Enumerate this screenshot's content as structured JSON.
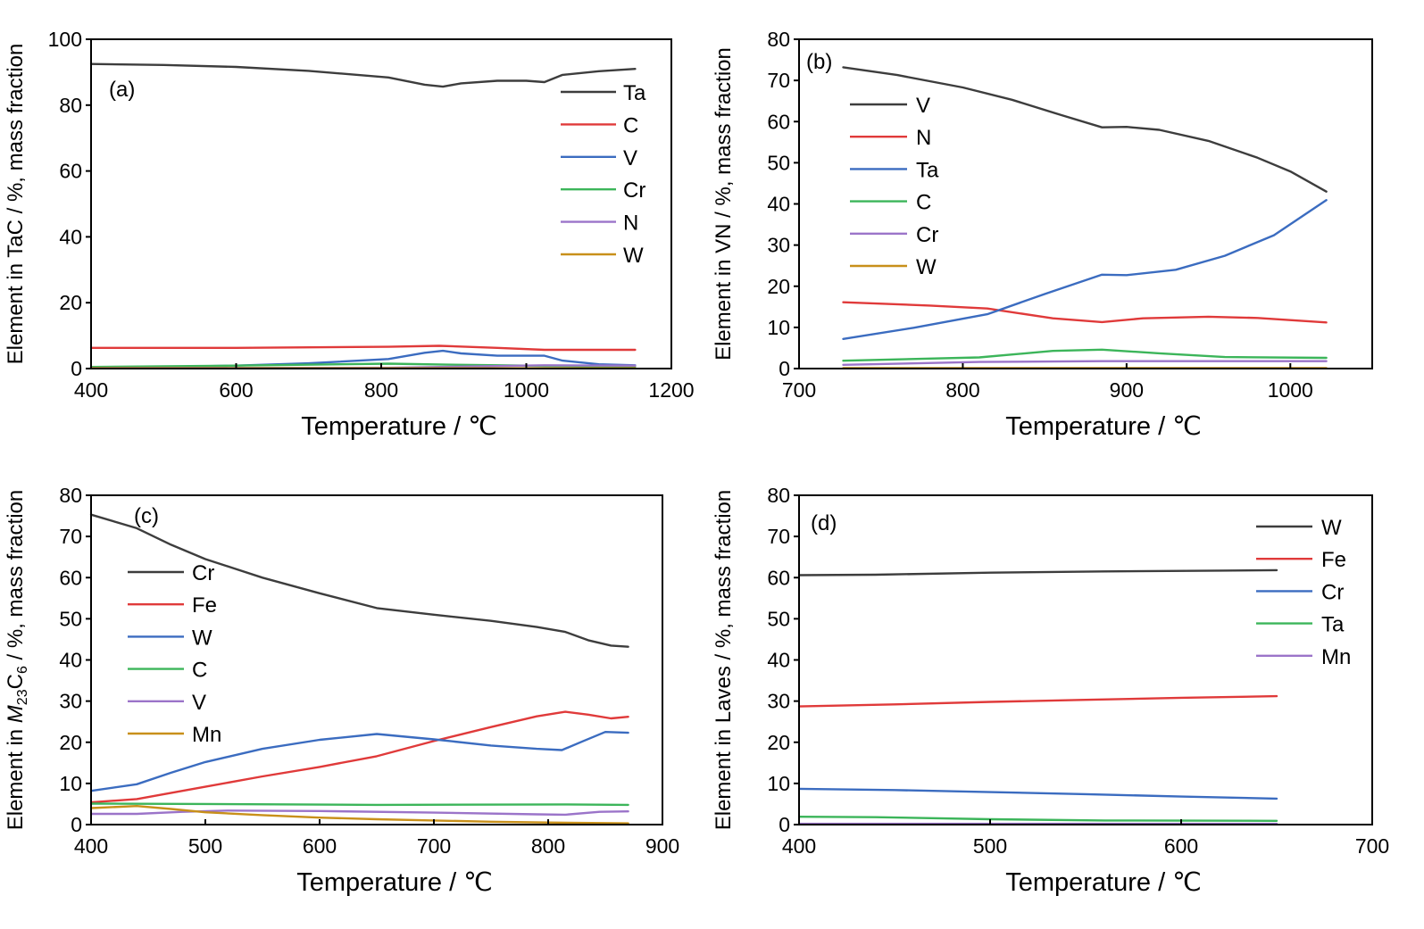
{
  "chart_data": [
    {
      "type": "line",
      "panel_label": "(a)",
      "xlabel": "Temperature / ℃",
      "ylabel": "Element in TaC / %, mass fraction",
      "xlim": [
        400,
        1200
      ],
      "ylim": [
        0,
        100
      ],
      "xticks": [
        400,
        600,
        800,
        1000,
        1200
      ],
      "yticks": [
        0,
        20,
        40,
        60,
        80,
        100
      ],
      "grid": false,
      "legend_position": "top-right",
      "series": [
        {
          "name": "Ta",
          "color": "#3d3d3d",
          "points": [
            [
              400,
              92.5
            ],
            [
              500,
              92.2
            ],
            [
              600,
              91.6
            ],
            [
              700,
              90.4
            ],
            [
              810,
              88.4
            ],
            [
              860,
              86.2
            ],
            [
              885,
              85.6
            ],
            [
              910,
              86.6
            ],
            [
              960,
              87.4
            ],
            [
              1000,
              87.4
            ],
            [
              1025,
              87.0
            ],
            [
              1050,
              89.2
            ],
            [
              1100,
              90.3
            ],
            [
              1150,
              91.0
            ]
          ]
        },
        {
          "name": "C",
          "color": "#e03a3a",
          "points": [
            [
              400,
              6.3
            ],
            [
              600,
              6.3
            ],
            [
              810,
              6.6
            ],
            [
              880,
              6.9
            ],
            [
              960,
              6.3
            ],
            [
              1025,
              5.7
            ],
            [
              1150,
              5.7
            ]
          ]
        },
        {
          "name": "V",
          "color": "#3b6cc0",
          "points": [
            [
              400,
              0.3
            ],
            [
              500,
              0.5
            ],
            [
              600,
              0.9
            ],
            [
              700,
              1.6
            ],
            [
              810,
              2.9
            ],
            [
              860,
              4.8
            ],
            [
              885,
              5.4
            ],
            [
              910,
              4.6
            ],
            [
              960,
              3.9
            ],
            [
              1025,
              3.9
            ],
            [
              1050,
              2.4
            ],
            [
              1100,
              1.3
            ],
            [
              1150,
              1.0
            ]
          ]
        },
        {
          "name": "Cr",
          "color": "#3cb55a",
          "points": [
            [
              400,
              0.5
            ],
            [
              600,
              0.9
            ],
            [
              810,
              1.5
            ],
            [
              890,
              1.2
            ],
            [
              1025,
              0.8
            ],
            [
              1150,
              0.6
            ]
          ]
        },
        {
          "name": "N",
          "color": "#9b74c9",
          "points": [
            [
              400,
              0.15
            ],
            [
              810,
              0.25
            ],
            [
              1025,
              1.0
            ],
            [
              1150,
              0.9
            ]
          ]
        },
        {
          "name": "W",
          "color": "#c8901a",
          "points": [
            [
              400,
              0.1
            ],
            [
              1150,
              0.1
            ]
          ]
        }
      ]
    },
    {
      "type": "line",
      "panel_label": "(b)",
      "xlabel": "Temperature / ℃",
      "ylabel": "Element in VN / %, mass fraction",
      "xlim": [
        700,
        1050
      ],
      "ylim": [
        0,
        80
      ],
      "xticks": [
        700,
        800,
        900,
        1000
      ],
      "yticks": [
        0,
        10,
        20,
        30,
        40,
        50,
        60,
        70,
        80
      ],
      "grid": false,
      "legend_position": "top-left",
      "series": [
        {
          "name": "V",
          "color": "#3d3d3d",
          "points": [
            [
              727,
              73.2
            ],
            [
              760,
              71.3
            ],
            [
              800,
              68.3
            ],
            [
              830,
              65.3
            ],
            [
              860,
              61.6
            ],
            [
              885,
              58.6
            ],
            [
              900,
              58.7
            ],
            [
              920,
              58.0
            ],
            [
              950,
              55.3
            ],
            [
              980,
              51.2
            ],
            [
              1000,
              47.9
            ],
            [
              1022,
              43.0
            ]
          ]
        },
        {
          "name": "N",
          "color": "#e03a3a",
          "points": [
            [
              727,
              16.1
            ],
            [
              780,
              15.3
            ],
            [
              815,
              14.6
            ],
            [
              855,
              12.2
            ],
            [
              885,
              11.3
            ],
            [
              910,
              12.2
            ],
            [
              950,
              12.6
            ],
            [
              980,
              12.3
            ],
            [
              1022,
              11.2
            ]
          ]
        },
        {
          "name": "Ta",
          "color": "#3b6cc0",
          "points": [
            [
              727,
              7.2
            ],
            [
              770,
              9.9
            ],
            [
              815,
              13.2
            ],
            [
              850,
              18.1
            ],
            [
              885,
              22.8
            ],
            [
              900,
              22.7
            ],
            [
              930,
              24.0
            ],
            [
              960,
              27.4
            ],
            [
              990,
              32.4
            ],
            [
              1022,
              40.9
            ]
          ]
        },
        {
          "name": "C",
          "color": "#3cb55a",
          "points": [
            [
              727,
              1.9
            ],
            [
              810,
              2.7
            ],
            [
              855,
              4.3
            ],
            [
              885,
              4.6
            ],
            [
              920,
              3.7
            ],
            [
              960,
              2.8
            ],
            [
              1022,
              2.6
            ]
          ]
        },
        {
          "name": "Cr",
          "color": "#9b74c9",
          "points": [
            [
              727,
              0.9
            ],
            [
              810,
              1.6
            ],
            [
              885,
              1.8
            ],
            [
              1022,
              1.8
            ]
          ]
        },
        {
          "name": "W",
          "color": "#c8901a",
          "points": [
            [
              727,
              0.1
            ],
            [
              1022,
              0.1
            ]
          ]
        }
      ]
    },
    {
      "type": "line",
      "panel_label": "(c)",
      "xlabel": "Temperature / ℃",
      "ylabel_prefix": "Element in ",
      "ylabel_italic": "M",
      "ylabel_sub1": "23",
      "ylabel_mid": "C",
      "ylabel_sub2": "6",
      "ylabel_suffix": " / %, mass fraction",
      "xlim": [
        400,
        900
      ],
      "ylim": [
        0,
        80
      ],
      "xticks": [
        400,
        500,
        600,
        700,
        800,
        900
      ],
      "yticks": [
        0,
        10,
        20,
        30,
        40,
        50,
        60,
        70,
        80
      ],
      "grid": false,
      "legend_position": "middle-left",
      "series": [
        {
          "name": "Cr",
          "color": "#3d3d3d",
          "points": [
            [
              400,
              75.3
            ],
            [
              440,
              72.0
            ],
            [
              470,
              68.0
            ],
            [
              500,
              64.5
            ],
            [
              550,
              60.0
            ],
            [
              600,
              56.2
            ],
            [
              650,
              52.6
            ],
            [
              700,
              51.0
            ],
            [
              750,
              49.5
            ],
            [
              790,
              48.0
            ],
            [
              815,
              46.8
            ],
            [
              835,
              44.8
            ],
            [
              855,
              43.5
            ],
            [
              870,
              43.2
            ]
          ]
        },
        {
          "name": "Fe",
          "color": "#e03a3a",
          "points": [
            [
              400,
              5.4
            ],
            [
              440,
              6.2
            ],
            [
              500,
              9.2
            ],
            [
              550,
              11.7
            ],
            [
              600,
              14.0
            ],
            [
              650,
              16.6
            ],
            [
              700,
              20.3
            ],
            [
              750,
              23.7
            ],
            [
              790,
              26.3
            ],
            [
              815,
              27.4
            ],
            [
              835,
              26.7
            ],
            [
              855,
              25.8
            ],
            [
              870,
              26.2
            ]
          ]
        },
        {
          "name": "W",
          "color": "#3b6cc0",
          "points": [
            [
              400,
              8.2
            ],
            [
              440,
              9.8
            ],
            [
              470,
              12.6
            ],
            [
              500,
              15.2
            ],
            [
              550,
              18.4
            ],
            [
              600,
              20.6
            ],
            [
              650,
              22.0
            ],
            [
              700,
              20.7
            ],
            [
              750,
              19.2
            ],
            [
              790,
              18.4
            ],
            [
              812,
              18.1
            ],
            [
              830,
              20.2
            ],
            [
              850,
              22.5
            ],
            [
              870,
              22.3
            ]
          ]
        },
        {
          "name": "C",
          "color": "#3cb55a",
          "points": [
            [
              400,
              5.1
            ],
            [
              500,
              5.0
            ],
            [
              650,
              4.8
            ],
            [
              815,
              4.9
            ],
            [
              870,
              4.8
            ]
          ]
        },
        {
          "name": "V",
          "color": "#9b74c9",
          "points": [
            [
              400,
              2.6
            ],
            [
              440,
              2.6
            ],
            [
              480,
              3.1
            ],
            [
              520,
              3.4
            ],
            [
              600,
              3.3
            ],
            [
              700,
              2.9
            ],
            [
              790,
              2.5
            ],
            [
              815,
              2.4
            ],
            [
              845,
              3.1
            ],
            [
              870,
              3.2
            ]
          ]
        },
        {
          "name": "Mn",
          "color": "#c8901a",
          "points": [
            [
              400,
              4.0
            ],
            [
              440,
              4.5
            ],
            [
              470,
              3.8
            ],
            [
              500,
              3.0
            ],
            [
              550,
              2.3
            ],
            [
              600,
              1.7
            ],
            [
              650,
              1.3
            ],
            [
              700,
              1.0
            ],
            [
              750,
              0.7
            ],
            [
              800,
              0.5
            ],
            [
              870,
              0.3
            ]
          ]
        }
      ]
    },
    {
      "type": "line",
      "panel_label": "(d)",
      "xlabel": "Temperature / ℃",
      "ylabel": "Element in Laves / %, mass fraction",
      "xlim": [
        400,
        700
      ],
      "ylim": [
        0,
        80
      ],
      "xticks": [
        400,
        500,
        600,
        700
      ],
      "yticks": [
        0,
        10,
        20,
        30,
        40,
        50,
        60,
        70,
        80
      ],
      "grid": false,
      "legend_position": "top-right",
      "series": [
        {
          "name": "W",
          "color": "#3d3d3d",
          "points": [
            [
              400,
              60.6
            ],
            [
              440,
              60.7
            ],
            [
              500,
              61.2
            ],
            [
              560,
              61.5
            ],
            [
              620,
              61.7
            ],
            [
              650,
              61.8
            ]
          ]
        },
        {
          "name": "Fe",
          "color": "#e03a3a",
          "points": [
            [
              400,
              28.7
            ],
            [
              450,
              29.2
            ],
            [
              500,
              29.8
            ],
            [
              550,
              30.3
            ],
            [
              600,
              30.8
            ],
            [
              650,
              31.2
            ]
          ]
        },
        {
          "name": "Cr",
          "color": "#3b6cc0",
          "points": [
            [
              400,
              8.7
            ],
            [
              450,
              8.4
            ],
            [
              500,
              7.9
            ],
            [
              550,
              7.4
            ],
            [
              600,
              6.8
            ],
            [
              650,
              6.3
            ]
          ]
        },
        {
          "name": "Ta",
          "color": "#3cb55a",
          "points": [
            [
              400,
              1.9
            ],
            [
              440,
              1.8
            ],
            [
              500,
              1.3
            ],
            [
              560,
              1.0
            ],
            [
              650,
              0.9
            ]
          ]
        },
        {
          "name": "Mn",
          "color": "#9b74c9",
          "points": [
            [
              400,
              0.2
            ],
            [
              650,
              0.2
            ]
          ]
        }
      ]
    }
  ]
}
